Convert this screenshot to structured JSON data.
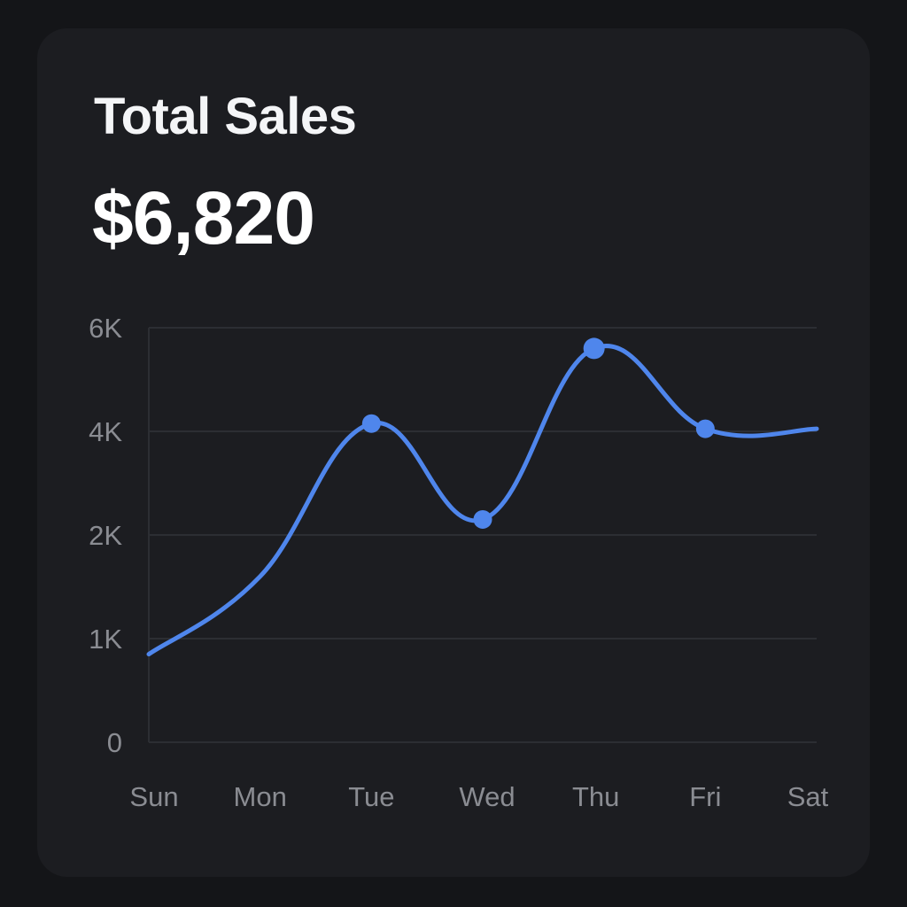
{
  "card": {
    "title": "Total Sales",
    "total": "$6,820"
  },
  "colors": {
    "background": "#141518",
    "card": "#1c1d21",
    "line": "#4f86ec",
    "grid": "#2c2e33",
    "tick_text": "#8a8c92"
  },
  "chart_data": {
    "type": "line",
    "categories": [
      "Sun",
      "Mon",
      "Tue",
      "Wed",
      "Thu",
      "Fri",
      "Sat"
    ],
    "series": [
      {
        "values": [
          850,
          1600,
          4150,
          2300,
          5600,
          4050,
          4050
        ]
      }
    ],
    "markers": [
      "Tue",
      "Wed",
      "Thu",
      "Fri"
    ],
    "y_ticks": [
      {
        "value": 0,
        "label": "0"
      },
      {
        "value": 1000,
        "label": "1K"
      },
      {
        "value": 2000,
        "label": "2K"
      },
      {
        "value": 4000,
        "label": "4K"
      },
      {
        "value": 6000,
        "label": "6K"
      }
    ],
    "grid": true,
    "legend": "none"
  }
}
